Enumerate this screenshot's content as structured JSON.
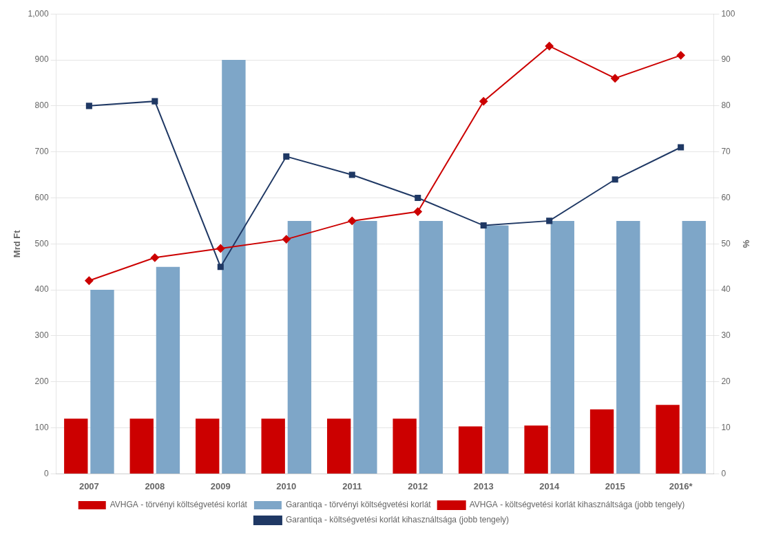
{
  "chart_data": {
    "type": "bar",
    "categories": [
      "2007",
      "2008",
      "2009",
      "2010",
      "2011",
      "2012",
      "2013",
      "2014",
      "2015",
      "2016*"
    ],
    "series": [
      {
        "name": "AVHGA - törvényi költségvetési korlát",
        "type": "bar",
        "color": "#cc0000",
        "values": [
          120,
          120,
          120,
          120,
          120,
          120,
          103,
          105,
          140,
          150
        ]
      },
      {
        "name": "Garantiqa - törvényi költségvetési korlát",
        "type": "bar",
        "color": "#7ea6c8",
        "values": [
          400,
          450,
          900,
          550,
          550,
          550,
          540,
          550,
          550,
          550
        ]
      },
      {
        "name": "AVHGA - költségvetési korlát kihasználtsága (jobb tengely)",
        "type": "line",
        "axis": "y2",
        "color": "#cc0000",
        "marker": "diamond",
        "values": [
          42,
          47,
          49,
          51,
          55,
          57,
          81,
          93,
          86,
          91
        ]
      },
      {
        "name": "Garantiqa - költségvetési korlát kihasználtsága (jobb tengely)",
        "type": "line",
        "axis": "y2",
        "color": "#1f3864",
        "marker": "square",
        "values": [
          80,
          81,
          45,
          69,
          65,
          60,
          54,
          55,
          64,
          71
        ]
      }
    ],
    "ylabel": "Mrd Ft",
    "y2label": "%",
    "ylim": [
      0,
      1000
    ],
    "yticks": [
      0,
      100,
      200,
      300,
      400,
      500,
      600,
      700,
      800,
      900,
      1000
    ],
    "y2lim": [
      0,
      100
    ],
    "y2ticks": [
      0,
      10,
      20,
      30,
      40,
      50,
      60,
      70,
      80,
      90,
      100
    ],
    "grid": true,
    "legend": "bottom"
  }
}
